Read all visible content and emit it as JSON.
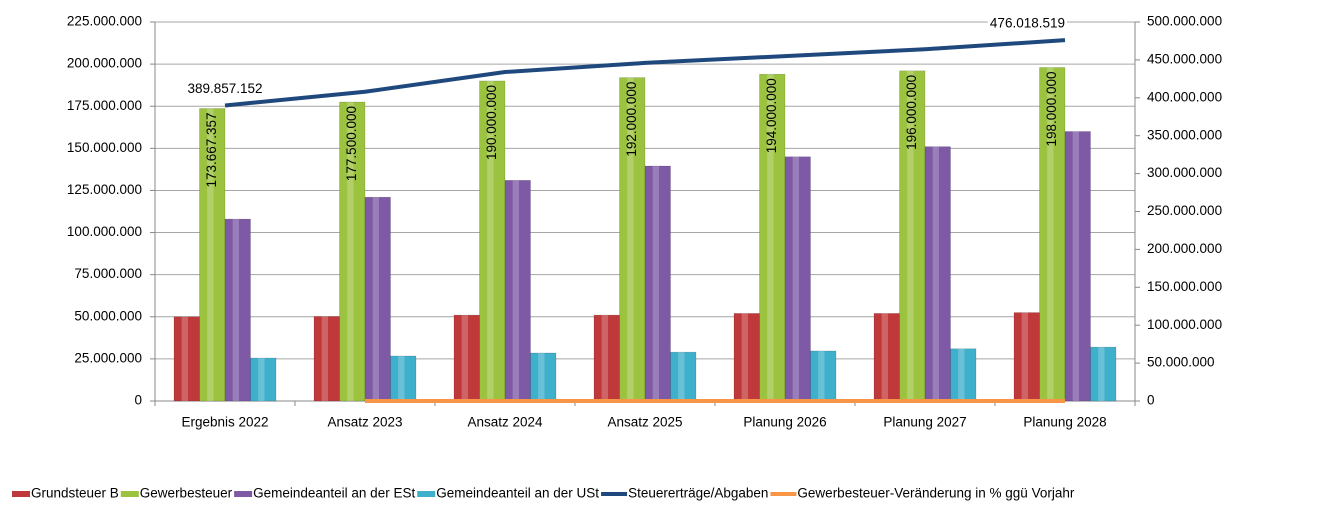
{
  "chart_data": {
    "type": "bar",
    "categories": [
      "Ergebnis 2022",
      "Ansatz 2023",
      "Ansatz 2024",
      "Ansatz 2025",
      "Planung 2026",
      "Planung 2027",
      "Planung 2028"
    ],
    "series": [
      {
        "name": "Grundsteuer B",
        "color": "#c0393a",
        "values": [
          50000000,
          50200000,
          51000000,
          51000000,
          52000000,
          52000000,
          52500000
        ]
      },
      {
        "name": "Gewerbesteuer",
        "color": "#9bc33f",
        "values": [
          173667357,
          177500000,
          190000000,
          192000000,
          194000000,
          196000000,
          198000000
        ],
        "value_labels": [
          "173.667.357",
          "177.500.000",
          "190.000.000",
          "192.000.000",
          "194.000.000",
          "196.000.000",
          "198.000.000"
        ]
      },
      {
        "name": "Gemeindeanteil an der ESt",
        "color": "#7e5aa6",
        "values": [
          108000000,
          121000000,
          131000000,
          139500000,
          145000000,
          151000000,
          160000000
        ]
      },
      {
        "name": "Gemeindeanteil an der USt",
        "color": "#3fb0cc",
        "values": [
          25500000,
          26700000,
          28500000,
          29000000,
          29700000,
          31000000,
          32000000
        ]
      },
      {
        "name": "Steuererträge/Abgaben",
        "type": "line",
        "axis": "y2",
        "color": "#1f497d",
        "values": [
          389857152,
          408000000,
          434000000,
          446000000,
          455000000,
          464000000,
          476018519
        ],
        "value_labels": [
          "389.857.152",
          null,
          null,
          null,
          null,
          null,
          "476.018.519"
        ]
      },
      {
        "name": "Gewerbesteuer-Veränderung in % ggü Vorjahr",
        "type": "line",
        "axis": "y2",
        "color": "#f79646",
        "values": [
          null,
          2.2,
          7.0,
          1.1,
          1.0,
          1.0,
          1.0
        ]
      }
    ],
    "ylim": [
      0,
      225000000
    ],
    "yticks": [
      0,
      {
        "value": 25000000,
        "label": "25.000.000"
      },
      {
        "value": 50000000,
        "label": "50.000.000"
      },
      {
        "value": 75000000,
        "label": "75.000.000"
      },
      {
        "value": 100000000,
        "label": "100.000.000"
      },
      {
        "value": 125000000,
        "label": "125.000.000"
      },
      {
        "value": 150000000,
        "label": "150.000.000"
      },
      {
        "value": 175000000,
        "label": "175.000.000"
      },
      {
        "value": 200000000,
        "label": "200.000.000"
      },
      {
        "value": 225000000,
        "label": "225.000.000"
      }
    ],
    "y2lim": [
      0,
      500000000
    ],
    "y2ticks": [
      0,
      {
        "value": 50000000,
        "label": "50.000.000"
      },
      {
        "value": 100000000,
        "label": "100.000.000"
      },
      {
        "value": 150000000,
        "label": "150.000.000"
      },
      {
        "value": 200000000,
        "label": "200.000.000"
      },
      {
        "value": 250000000,
        "label": "250.000.000"
      },
      {
        "value": 300000000,
        "label": "300.000.000"
      },
      {
        "value": 350000000,
        "label": "350.000.000"
      },
      {
        "value": 400000000,
        "label": "400.000.000"
      },
      {
        "value": 450000000,
        "label": "450.000.000"
      },
      {
        "value": 500000000,
        "label": "500.000.000"
      }
    ],
    "grid": true,
    "legend": "bottom"
  }
}
